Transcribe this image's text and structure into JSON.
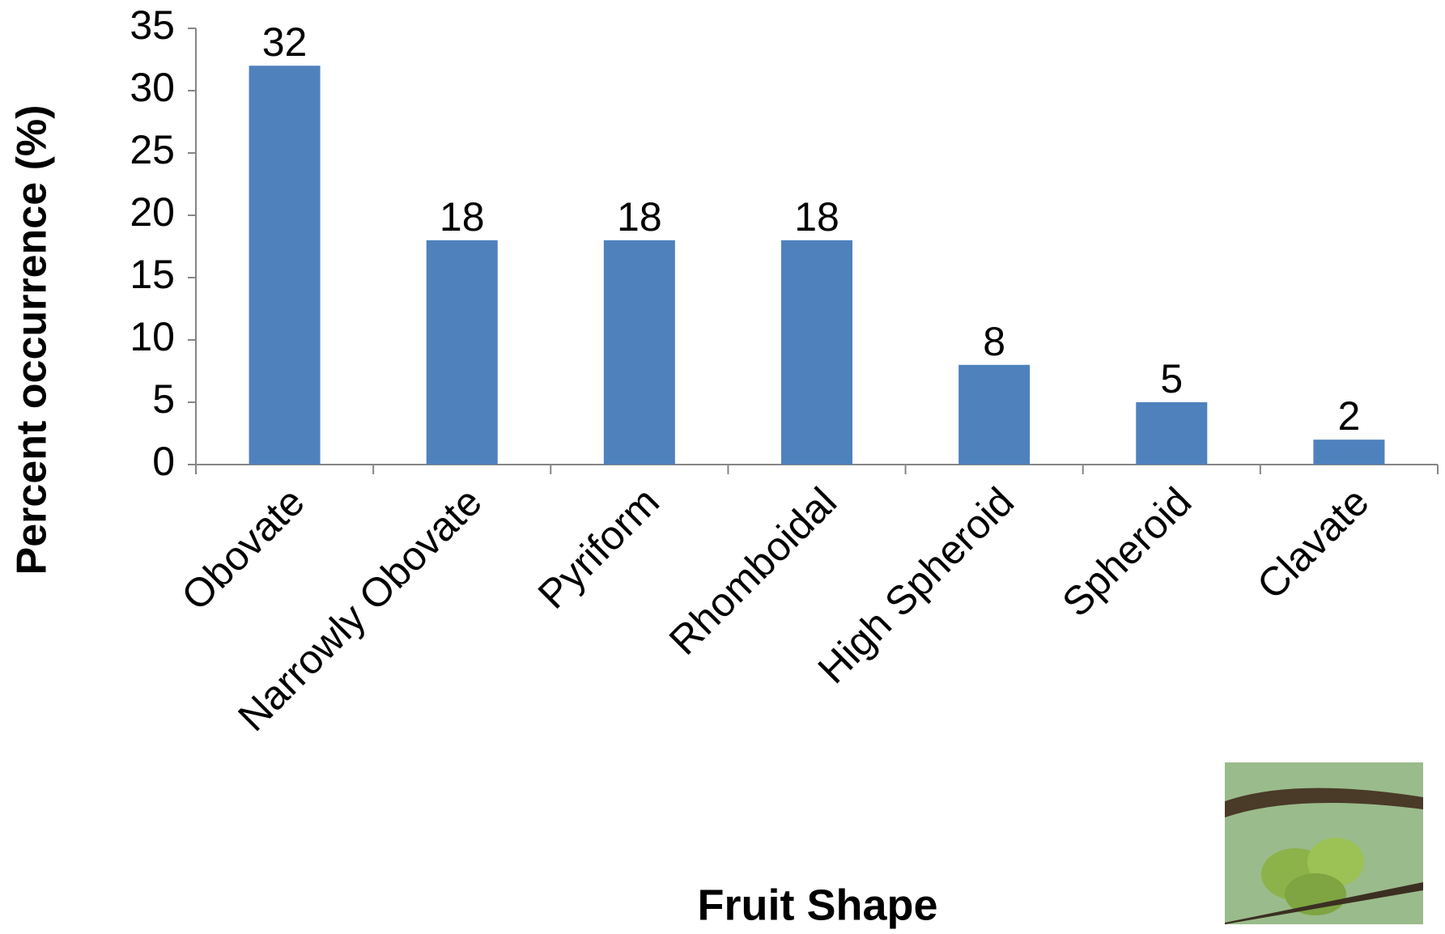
{
  "chart_data": {
    "type": "bar",
    "xlabel": "Fruit Shape",
    "ylabel": "Percent occurrence (%)",
    "categories": [
      "Obovate",
      "Narrowly Obovate",
      "Pyriform",
      "Rhomboidal",
      "High Spheroid",
      "Spheroid",
      "Clavate"
    ],
    "values": [
      32,
      18,
      18,
      18,
      8,
      5,
      2
    ],
    "color": "#4f81bd",
    "ylim": [
      0,
      35
    ],
    "yticks": [
      0,
      5,
      10,
      15,
      20,
      25,
      30,
      35
    ],
    "grid": false
  }
}
